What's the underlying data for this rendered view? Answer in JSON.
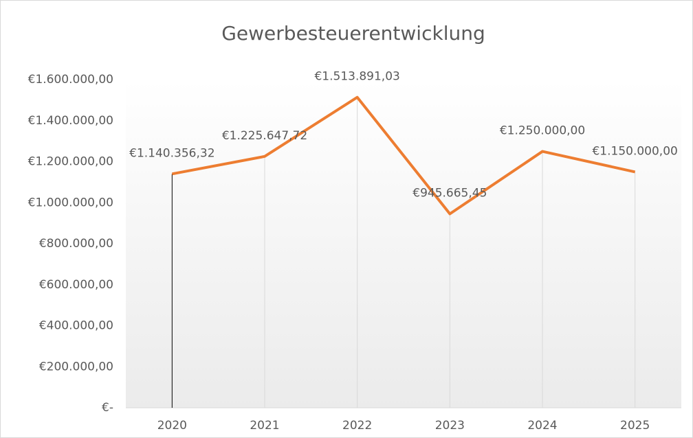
{
  "chart_data": {
    "type": "line",
    "title": "Gewerbesteuerentwicklung",
    "categories": [
      "2020",
      "2021",
      "2022",
      "2023",
      "2024",
      "2025"
    ],
    "values": [
      1140356.32,
      1225647.72,
      1513891.03,
      945665.45,
      1250000,
      1150000
    ],
    "value_labels": [
      "€1.140.356,32",
      "€1.225.647,72",
      "€1.513.891,03",
      "€945.665,45",
      "€1.250.000,00",
      "€1.150.000,00"
    ],
    "color": "#ed7d31",
    "ylim": [
      0,
      1600000
    ],
    "yticks": [
      {
        "value": 0,
        "label": "€-"
      },
      {
        "value": 200000,
        "label": "€200.000,00"
      },
      {
        "value": 400000,
        "label": "€400.000,00"
      },
      {
        "value": 600000,
        "label": "€600.000,00"
      },
      {
        "value": 800000,
        "label": "€800.000,00"
      },
      {
        "value": 1000000,
        "label": "€1.000.000,00"
      },
      {
        "value": 1200000,
        "label": "€1.200.000,00"
      },
      {
        "value": 1400000,
        "label": "€1.400.000,00"
      },
      {
        "value": 1600000,
        "label": "€1.600.000,00"
      }
    ],
    "drop_lines": true
  }
}
